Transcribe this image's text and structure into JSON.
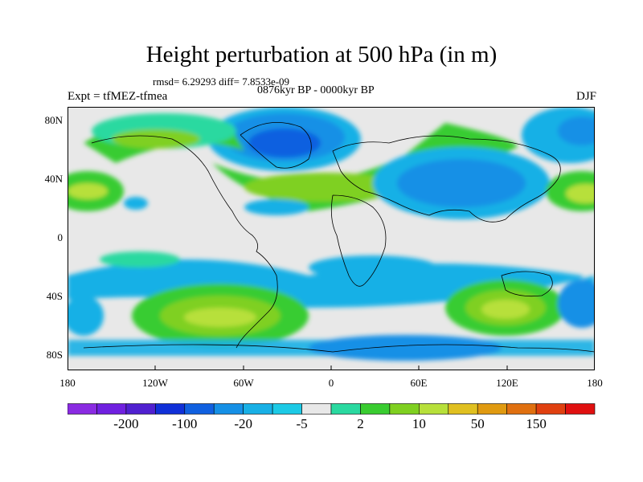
{
  "title": "Height perturbation at 500 hPa (in m)",
  "stats": "rmsd= 6.29293 diff= 7.8533e-09",
  "period": "0876kyr BP - 0000kyr BP",
  "experiment": "Expt = tfMEZ-tfmea",
  "season": "DJF",
  "lat_labels": [
    "80N",
    "40N",
    "0",
    "40S",
    "80S"
  ],
  "lon_labels": [
    "180",
    "120W",
    "60W",
    "0",
    "60E",
    "120E",
    "180"
  ],
  "colorbar": {
    "colors": [
      "#8a2be2",
      "#7020e0",
      "#5020d0",
      "#1030d8",
      "#1060e0",
      "#1590e6",
      "#18b0e6",
      "#1ccae6",
      "#e8e8e8",
      "#2ad9a0",
      "#39cc30",
      "#7fd020",
      "#b7e03a",
      "#e0c020",
      "#e09a10",
      "#e07010",
      "#e04010",
      "#e01010"
    ],
    "labels": [
      "-200",
      "-100",
      "-20",
      "-5",
      "2",
      "10",
      "50",
      "150"
    ]
  },
  "colors": {
    "background_field": "#e8e8e8",
    "coast": "#000000"
  }
}
